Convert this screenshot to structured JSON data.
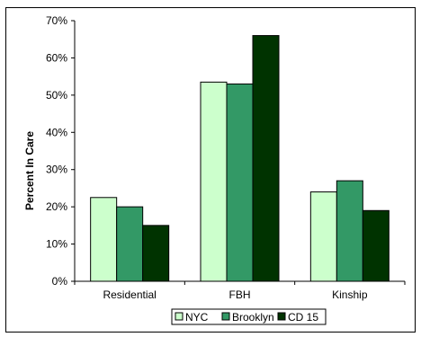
{
  "chart_data": {
    "type": "bar",
    "title": "",
    "xlabel": "",
    "ylabel": "Percent In Care",
    "ylim": [
      0,
      70
    ],
    "yticks": [
      "0%",
      "10%",
      "20%",
      "30%",
      "40%",
      "50%",
      "60%",
      "70%"
    ],
    "categories": [
      "Residential",
      "FBH",
      "Kinship"
    ],
    "series": [
      {
        "name": "NYC",
        "values": [
          22.5,
          53.5,
          24
        ],
        "color": "#ccffcc"
      },
      {
        "name": "Brooklyn",
        "values": [
          20,
          53,
          27
        ],
        "color": "#339966"
      },
      {
        "name": "CD 15",
        "values": [
          15,
          66,
          19
        ],
        "color": "#003300"
      }
    ],
    "grid": false,
    "legend": "bottom"
  }
}
